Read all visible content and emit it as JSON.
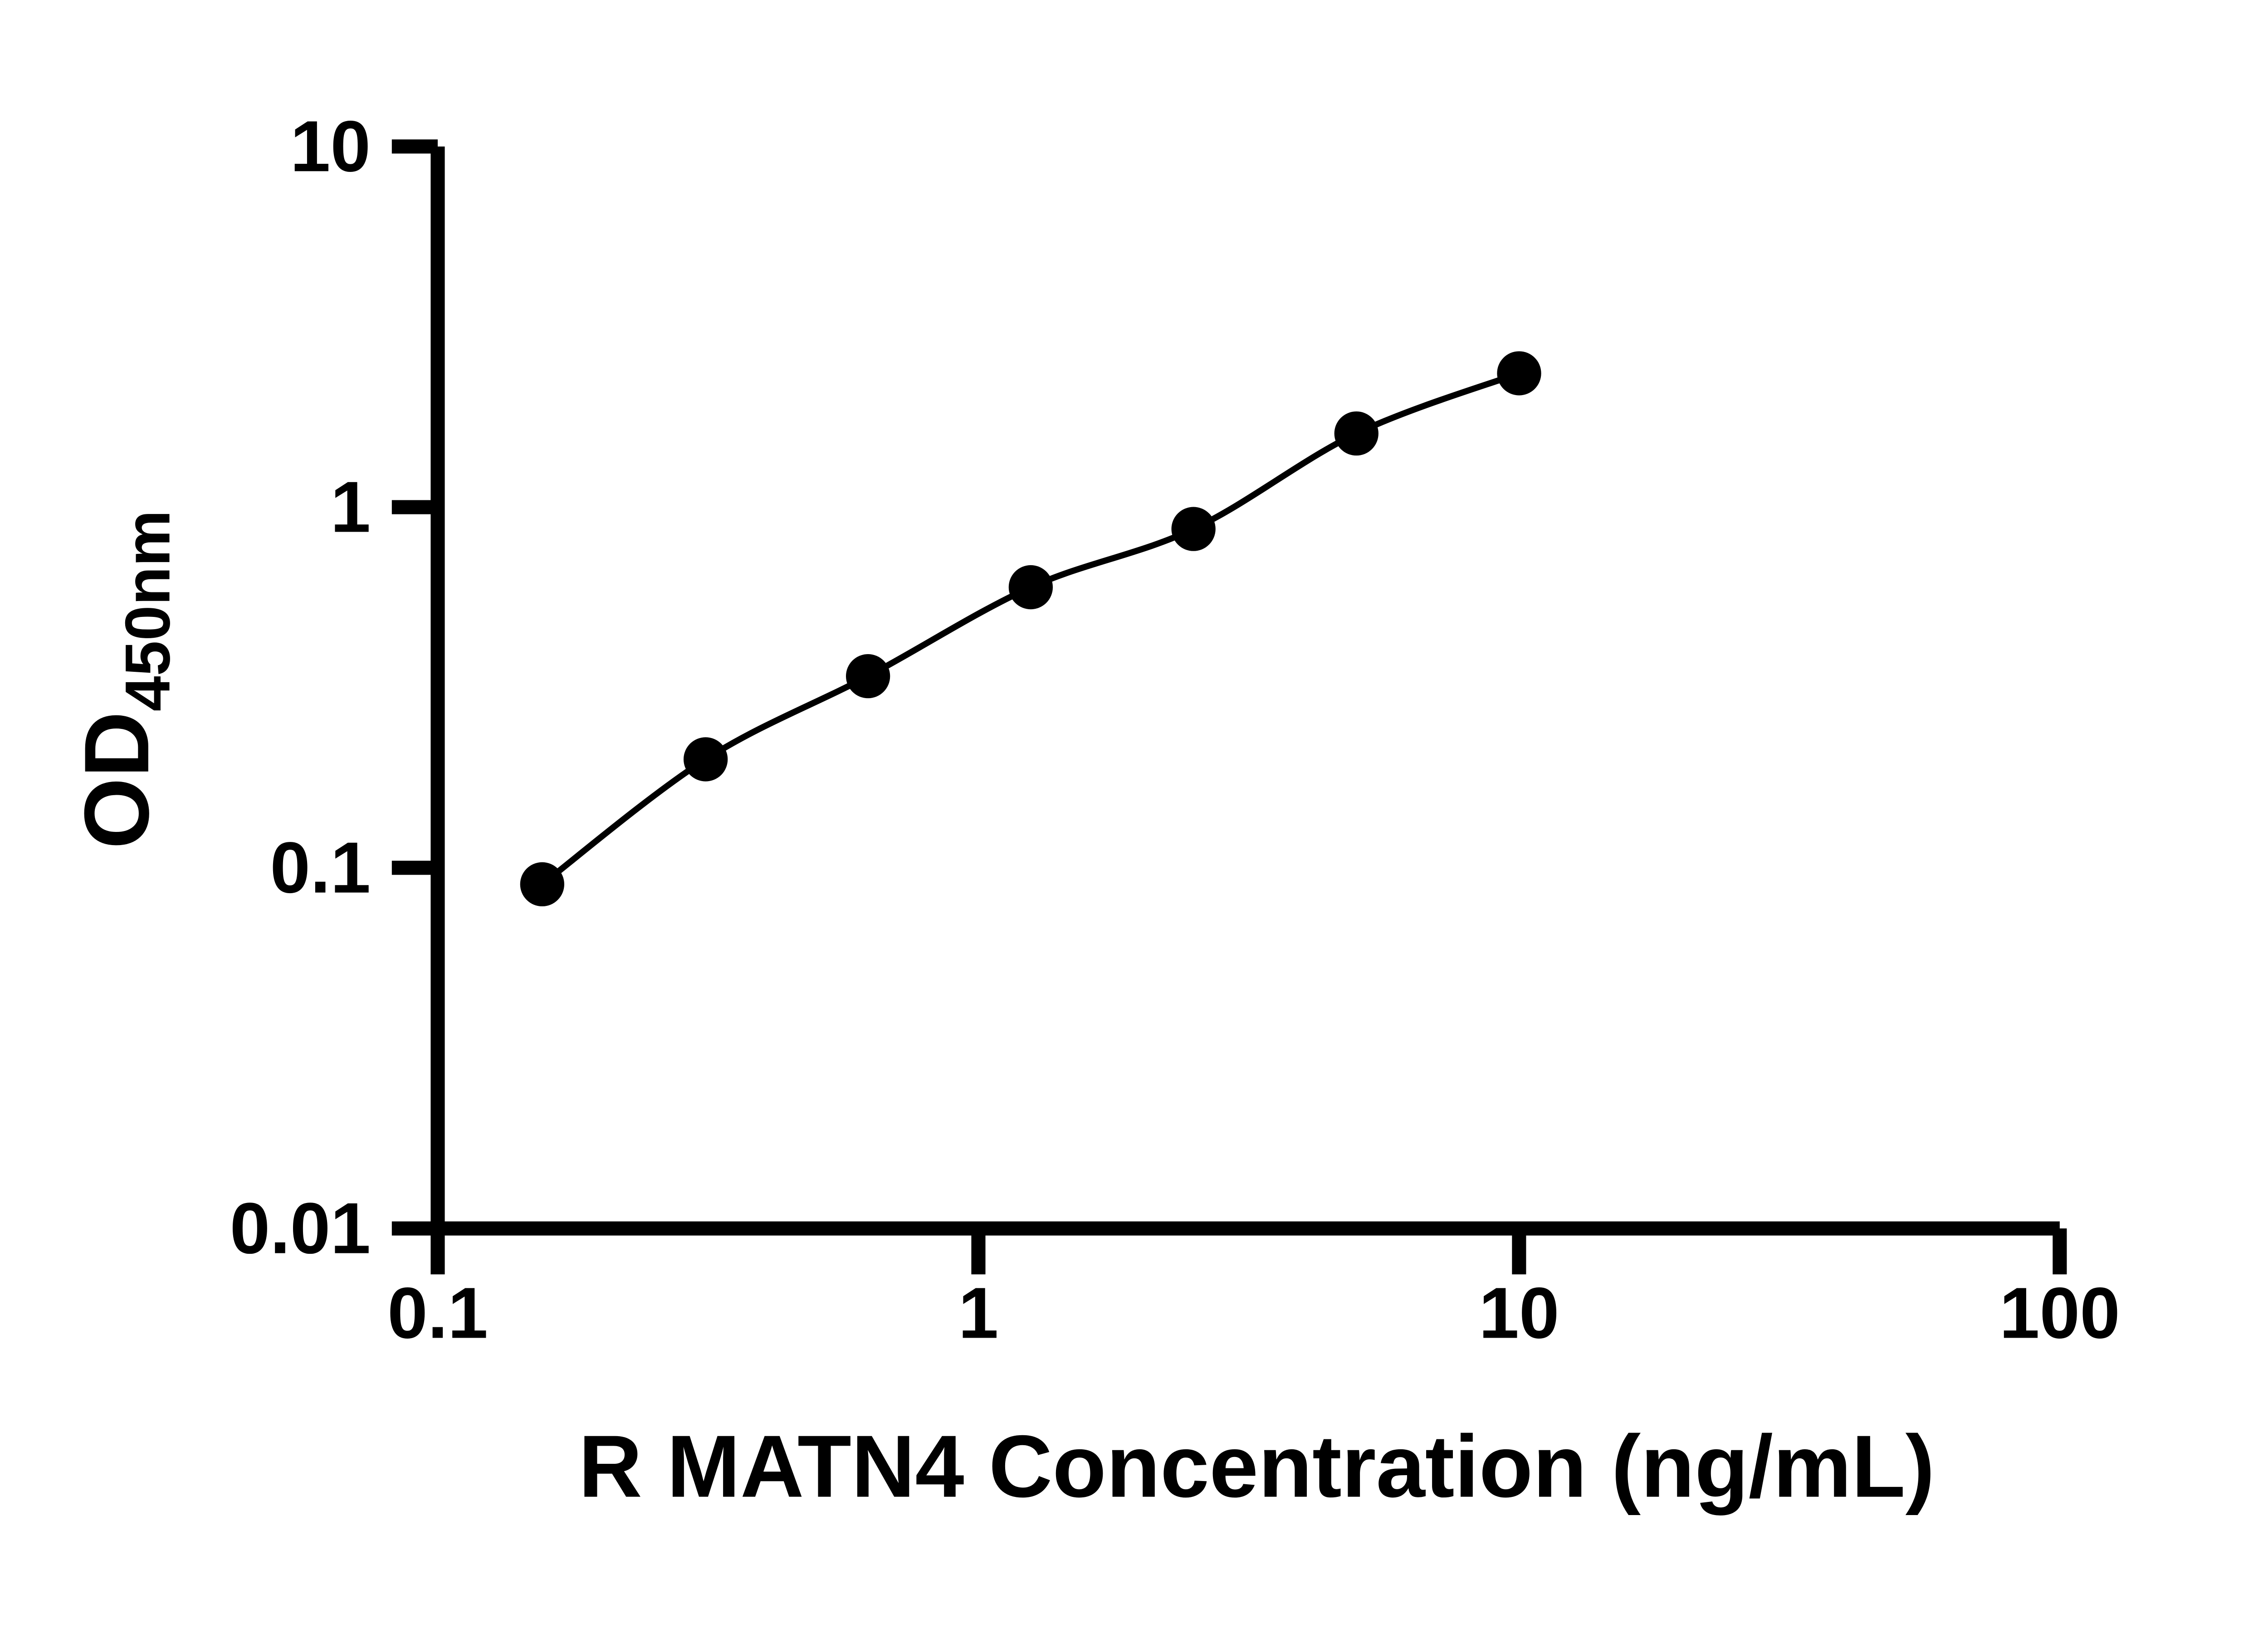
{
  "figure": {
    "background": "#ffffff"
  },
  "chart_data": {
    "type": "scatter",
    "title": "",
    "xlabel": "R MATN4 Concentration (ng/mL)",
    "ylabel_main": "OD",
    "ylabel_sub": "450nm",
    "x_scale": "log",
    "y_scale": "log",
    "xlim": [
      0.1,
      100
    ],
    "ylim": [
      0.01,
      10
    ],
    "x_tick_values": [
      0.1,
      1,
      10,
      100
    ],
    "x_tick_labels": [
      "0.1",
      "1",
      "10",
      "100"
    ],
    "y_tick_values": [
      0.01,
      0.1,
      1,
      10
    ],
    "y_tick_labels": [
      "0.01",
      "0.1",
      "1",
      "10"
    ],
    "grid": false,
    "legend": "none",
    "axis_color": "#000000",
    "series": [
      {
        "marker": "filled-circle",
        "marker_color": "#000000",
        "line_color": "#000000",
        "fit": "smooth",
        "x": [
          0.156,
          0.313,
          0.625,
          1.25,
          2.5,
          5,
          10
        ],
        "y": [
          0.09,
          0.2,
          0.34,
          0.6,
          0.87,
          1.6,
          2.35
        ]
      }
    ]
  }
}
